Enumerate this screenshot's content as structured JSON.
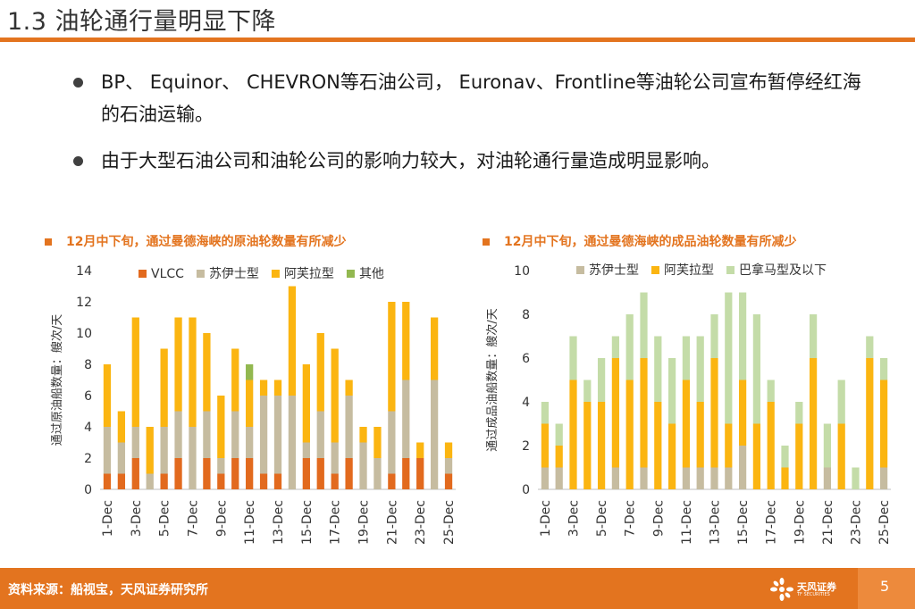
{
  "title": "1.3 油轮通行量明显下降",
  "bullets": [
    "BP、 Equinor、 CHEVRON等石油公司， Euronav、Frontline等油轮公司宣布暂停经红海的石油运输。",
    "由于大型石油公司和油轮公司的影响力较大，对油轮通行量造成明显影响。"
  ],
  "footer": {
    "source": "资料来源：船视宝，天风证券研究所",
    "page": "5",
    "logo_name": "天风证券",
    "logo_sub": "TF SECURITIES"
  },
  "chart_data": [
    {
      "type": "bar",
      "stacked": true,
      "title": "12月中下旬，通过曼德海峡的原油轮数量有所减少",
      "ylabel": "通过原油船数量：艘次/天",
      "ylim": [
        0,
        14
      ],
      "yticks": [
        0,
        2,
        4,
        6,
        8,
        10,
        12,
        14
      ],
      "categories": [
        "1-Dec",
        "2-Dec",
        "3-Dec",
        "4-Dec",
        "5-Dec",
        "6-Dec",
        "7-Dec",
        "8-Dec",
        "9-Dec",
        "10-Dec",
        "11-Dec",
        "12-Dec",
        "13-Dec",
        "14-Dec",
        "15-Dec",
        "16-Dec",
        "17-Dec",
        "18-Dec",
        "19-Dec",
        "20-Dec",
        "21-Dec",
        "22-Dec",
        "23-Dec",
        "24-Dec",
        "25-Dec"
      ],
      "tick_labels": [
        "1-Dec",
        "3-Dec",
        "5-Dec",
        "7-Dec",
        "9-Dec",
        "11-Dec",
        "13-Dec",
        "15-Dec",
        "17-Dec",
        "19-Dec",
        "21-Dec",
        "23-Dec",
        "25-Dec"
      ],
      "series": [
        {
          "name": "VLCC",
          "color": "#e26a1e",
          "values": [
            1,
            1,
            2,
            0,
            1,
            2,
            0,
            2,
            1,
            2,
            2,
            1,
            1,
            0,
            2,
            2,
            1,
            2,
            0,
            0,
            1,
            2,
            2,
            0,
            1
          ]
        },
        {
          "name": "苏伊士型",
          "color": "#c6bca0",
          "values": [
            3,
            2,
            2,
            1,
            3,
            3,
            4,
            3,
            1,
            3,
            2,
            5,
            5,
            6,
            1,
            3,
            2,
            4,
            3,
            2,
            4,
            5,
            0,
            7,
            1
          ]
        },
        {
          "name": "阿芙拉型",
          "color": "#fbb511",
          "values": [
            4,
            2,
            7,
            3,
            5,
            6,
            7,
            5,
            4,
            4,
            3,
            1,
            1,
            7,
            5,
            5,
            6,
            1,
            1,
            2,
            7,
            5,
            1,
            4,
            1
          ]
        },
        {
          "name": "其他",
          "color": "#92b850",
          "values": [
            0,
            0,
            0,
            0,
            0,
            0,
            0,
            0,
            0,
            0,
            1,
            0,
            0,
            0,
            0,
            0,
            0,
            0,
            0,
            0,
            0,
            0,
            0,
            0,
            0
          ]
        }
      ]
    },
    {
      "type": "bar",
      "stacked": true,
      "title": "12月中下旬，通过曼德海峡的成品油轮数量有所减少",
      "ylabel": "通过成品油船数量：艘次/天",
      "ylim": [
        0,
        10
      ],
      "yticks": [
        0,
        2,
        4,
        6,
        8,
        10
      ],
      "categories": [
        "1-Dec",
        "2-Dec",
        "3-Dec",
        "4-Dec",
        "5-Dec",
        "6-Dec",
        "7-Dec",
        "8-Dec",
        "9-Dec",
        "10-Dec",
        "11-Dec",
        "12-Dec",
        "13-Dec",
        "14-Dec",
        "15-Dec",
        "16-Dec",
        "17-Dec",
        "18-Dec",
        "19-Dec",
        "20-Dec",
        "21-Dec",
        "22-Dec",
        "23-Dec",
        "24-Dec",
        "25-Dec"
      ],
      "tick_labels": [
        "1-Dec",
        "3-Dec",
        "5-Dec",
        "7-Dec",
        "9-Dec",
        "11-Dec",
        "13-Dec",
        "15-Dec",
        "17-Dec",
        "19-Dec",
        "21-Dec",
        "23-Dec",
        "25-Dec"
      ],
      "series": [
        {
          "name": "苏伊士型",
          "color": "#c6bca0",
          "values": [
            1,
            1,
            0,
            0,
            0,
            1,
            0,
            1,
            0,
            0,
            1,
            1,
            1,
            1,
            2,
            0,
            0,
            0,
            0,
            0,
            1,
            0,
            0,
            0,
            1
          ]
        },
        {
          "name": "阿芙拉型",
          "color": "#fbb511",
          "values": [
            2,
            1,
            5,
            4,
            4,
            5,
            5,
            5,
            4,
            3,
            4,
            3,
            5,
            2,
            3,
            3,
            4,
            1,
            3,
            6,
            0,
            3,
            0,
            6,
            4
          ]
        },
        {
          "name": "巴拿马型及以下",
          "color": "#c4dca8",
          "values": [
            1,
            1,
            2,
            1,
            2,
            1,
            3,
            3,
            3,
            3,
            2,
            3,
            2,
            6,
            4,
            5,
            1,
            1,
            1,
            2,
            2,
            2,
            1,
            1,
            1
          ]
        }
      ]
    }
  ]
}
